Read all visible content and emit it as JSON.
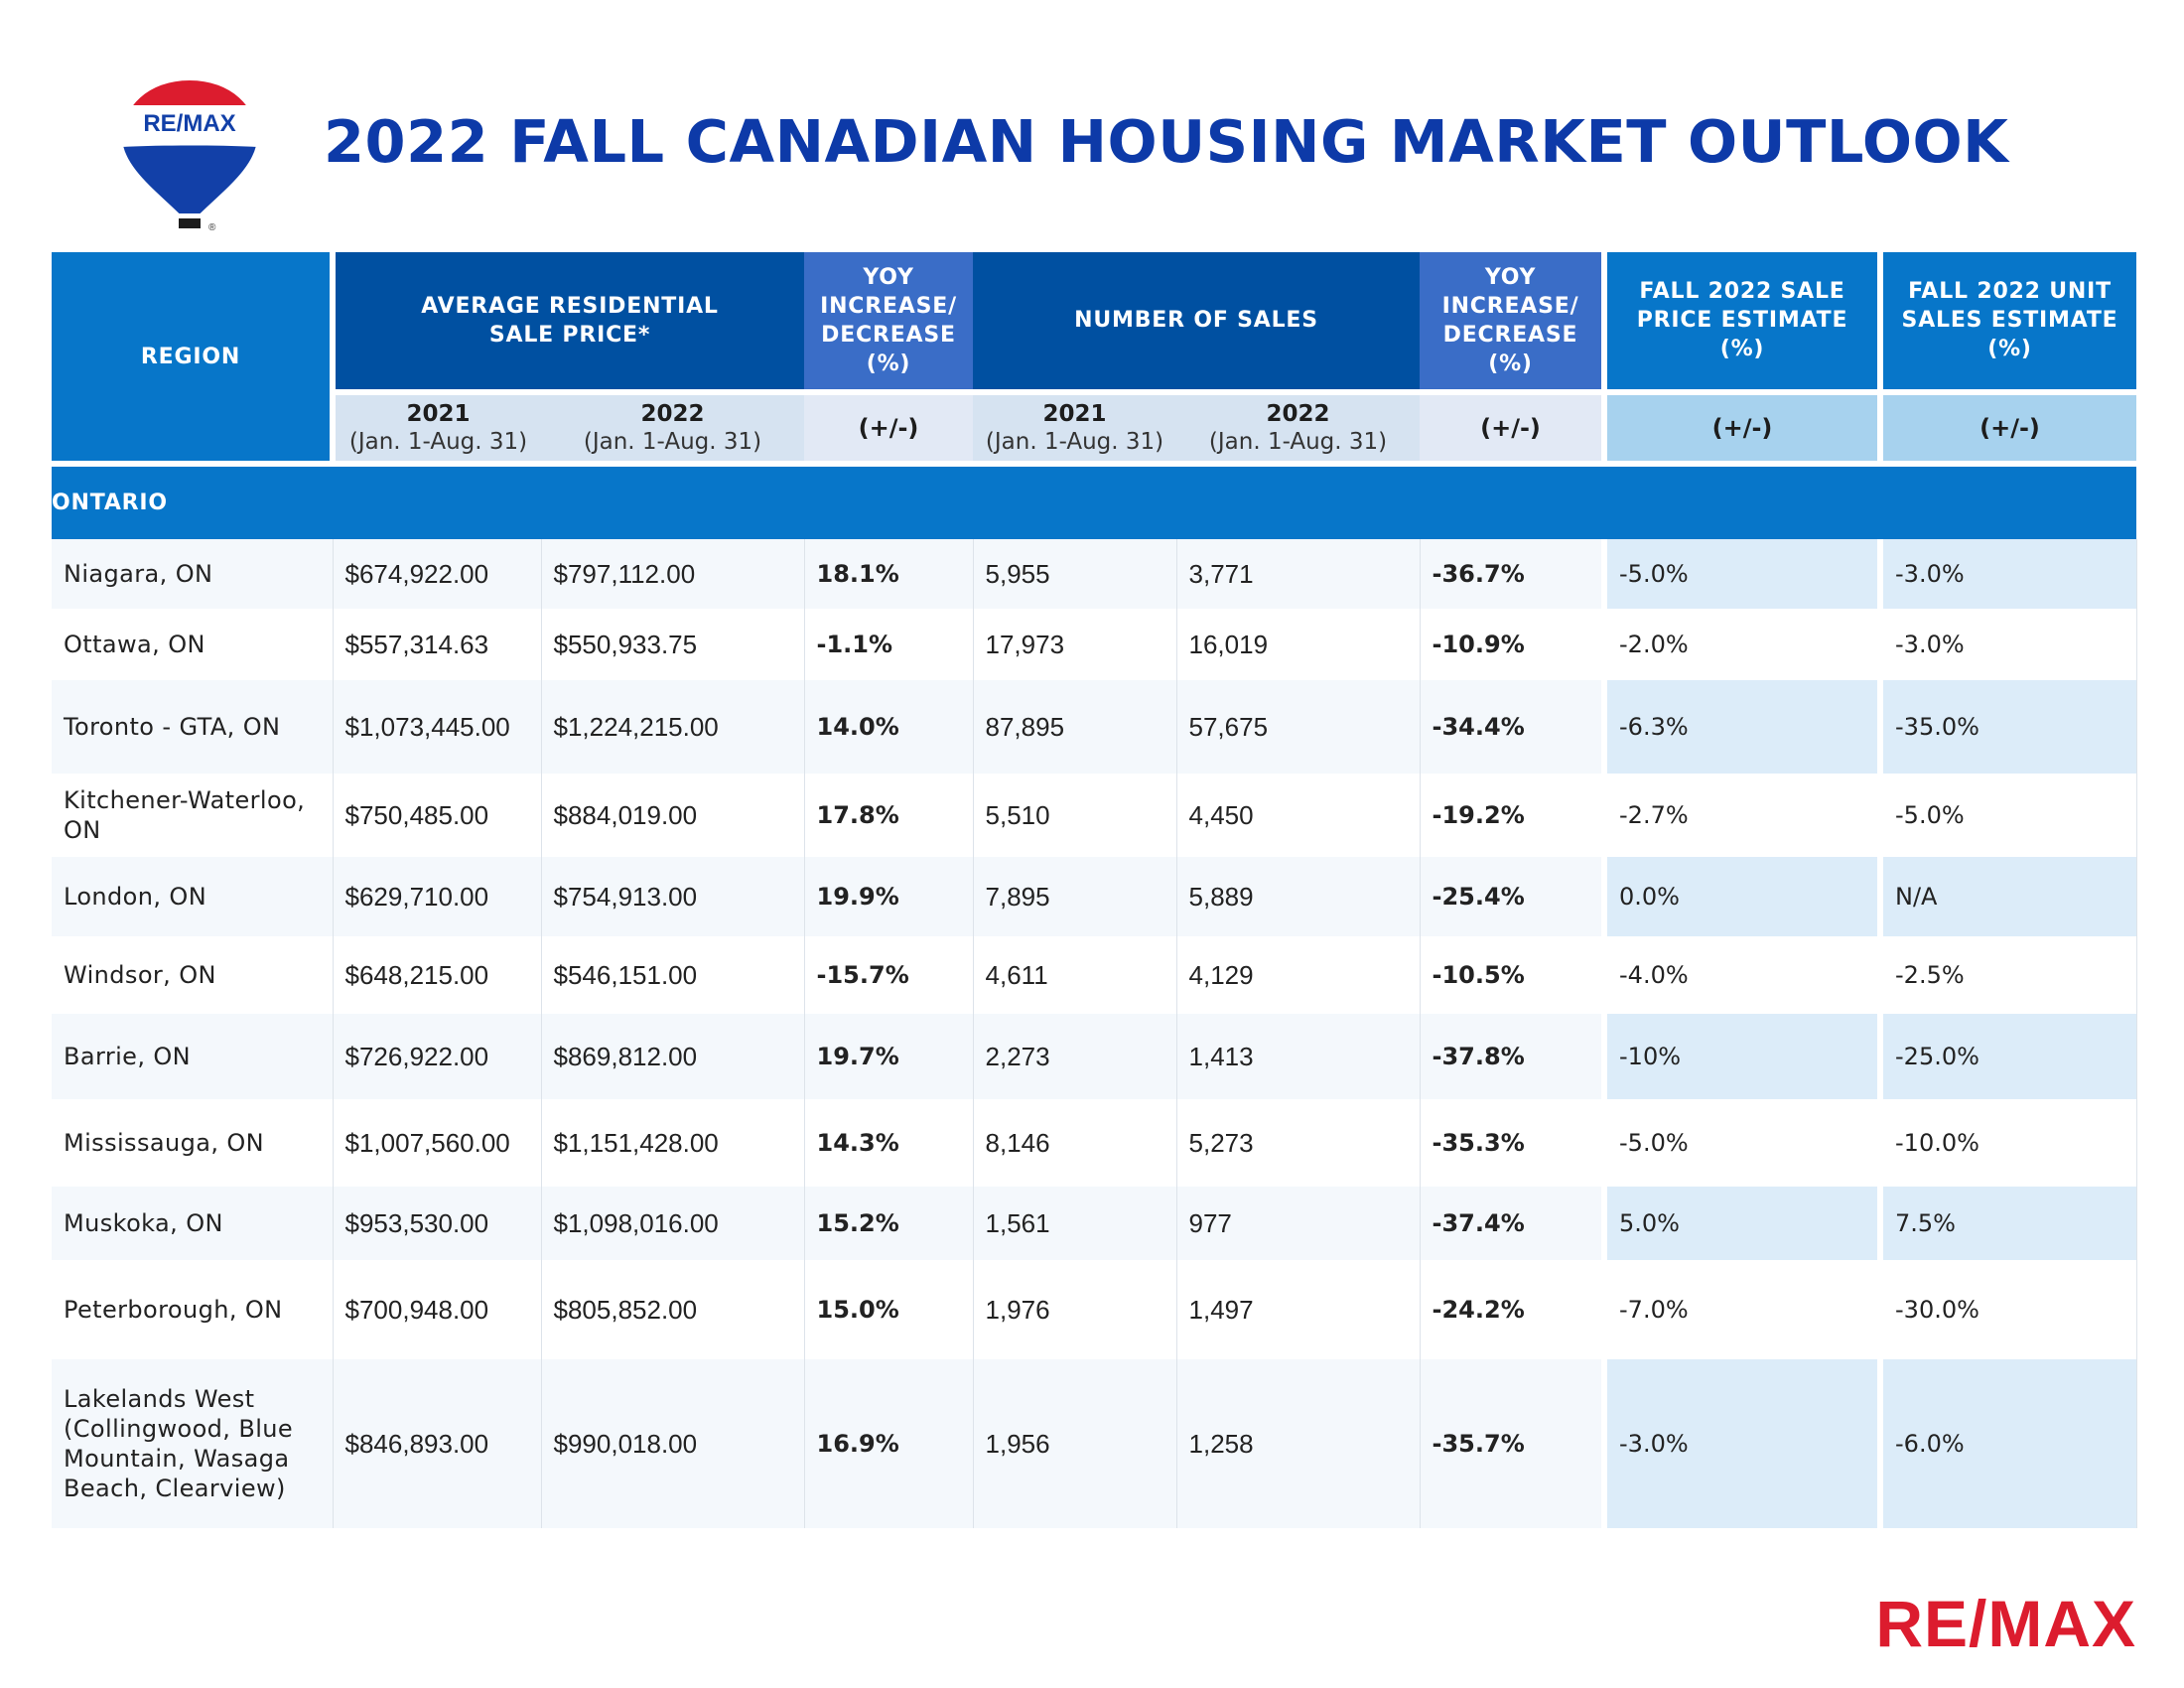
{
  "header": {
    "title": "2022 FALL CANADIAN HOUSING MARKET OUTLOOK",
    "balloon_logo_text": "RE/MAX",
    "balloon_logo_mark": "®"
  },
  "table": {
    "columns": {
      "region": "REGION",
      "avg_price": "AVERAGE RESIDENTIAL SALE PRICE*",
      "yoy": "YOY INCREASE/ DECREASE (%)",
      "num_sales": "NUMBER OF SALES",
      "fall_price": "FALL 2022 SALE PRICE ESTIMATE (%)",
      "fall_units": "FALL 2022 UNIT SALES ESTIMATE (%)"
    },
    "subheaders": {
      "year_2021": "2021",
      "year_2022": "2022",
      "range": "(Jan. 1-Aug. 31)",
      "plus_minus": "(+/-)"
    },
    "section": "ONTARIO",
    "rows": [
      {
        "region": "Niagara, ON",
        "p2021": "$674,922.00",
        "p2022": "$797,112.00",
        "pyoy": "18.1%",
        "s2021": "5,955",
        "s2022": "3,771",
        "syoy": "-36.7%",
        "fprice": "-5.0%",
        "funits": "-3.0%"
      },
      {
        "region": "Ottawa, ON",
        "p2021": "$557,314.63",
        "p2022": "$550,933.75",
        "pyoy": "-1.1%",
        "s2021": "17,973",
        "s2022": "16,019",
        "syoy": "-10.9%",
        "fprice": "-2.0%",
        "funits": "-3.0%"
      },
      {
        "region": "Toronto - GTA, ON",
        "p2021": "$1,073,445.00",
        "p2022": "$1,224,215.00",
        "pyoy": "14.0%",
        "s2021": "87,895",
        "s2022": "57,675",
        "syoy": "-34.4%",
        "fprice": "-6.3%",
        "funits": "-35.0%"
      },
      {
        "region": "Kitchener-Waterloo, ON",
        "p2021": "$750,485.00",
        "p2022": "$884,019.00",
        "pyoy": "17.8%",
        "s2021": "5,510",
        "s2022": "4,450",
        "syoy": "-19.2%",
        "fprice": "-2.7%",
        "funits": "-5.0%"
      },
      {
        "region": "London, ON",
        "p2021": "$629,710.00",
        "p2022": "$754,913.00",
        "pyoy": "19.9%",
        "s2021": "7,895",
        "s2022": "5,889",
        "syoy": "-25.4%",
        "fprice": "0.0%",
        "funits": "N/A"
      },
      {
        "region": "Windsor, ON",
        "p2021": "$648,215.00",
        "p2022": "$546,151.00",
        "pyoy": "-15.7%",
        "s2021": "4,611",
        "s2022": "4,129",
        "syoy": "-10.5%",
        "fprice": "-4.0%",
        "funits": "-2.5%"
      },
      {
        "region": "Barrie, ON",
        "p2021": "$726,922.00",
        "p2022": "$869,812.00",
        "pyoy": "19.7%",
        "s2021": "2,273",
        "s2022": "1,413",
        "syoy": "-37.8%",
        "fprice": "-10%",
        "funits": "-25.0%"
      },
      {
        "region": "Mississauga, ON",
        "p2021": "$1,007,560.00",
        "p2022": "$1,151,428.00",
        "pyoy": "14.3%",
        "s2021": "8,146",
        "s2022": "5,273",
        "syoy": "-35.3%",
        "fprice": "-5.0%",
        "funits": "-10.0%"
      },
      {
        "region": "Muskoka, ON",
        "p2021": "$953,530.00",
        "p2022": "$1,098,016.00",
        "pyoy": "15.2%",
        "s2021": "1,561",
        "s2022": "977",
        "syoy": "-37.4%",
        "fprice": "5.0%",
        "funits": "7.5%"
      },
      {
        "region": "Peterborough, ON",
        "p2021": "$700,948.00",
        "p2022": "$805,852.00",
        "pyoy": "15.0%",
        "s2021": "1,976",
        "s2022": "1,497",
        "syoy": "-24.2%",
        "fprice": "-7.0%",
        "funits": "-30.0%"
      },
      {
        "region": "Lakelands West (Collingwood, Blue Mountain, Wasaga Beach, Clearview)",
        "p2021": "$846,893.00",
        "p2022": "$990,018.00",
        "pyoy": "16.9%",
        "s2021": "1,956",
        "s2022": "1,258",
        "syoy": "-35.7%",
        "fprice": "-3.0%",
        "funits": "-6.0%"
      }
    ]
  },
  "footer": {
    "logo_text": "RE/MAX"
  },
  "colors": {
    "title_blue": "#0d3aa8",
    "header_dark": "#0050a1",
    "header_mid": "#0776c9",
    "header_yoy": "#3a6dc7",
    "remax_red": "#dc1c2e"
  }
}
